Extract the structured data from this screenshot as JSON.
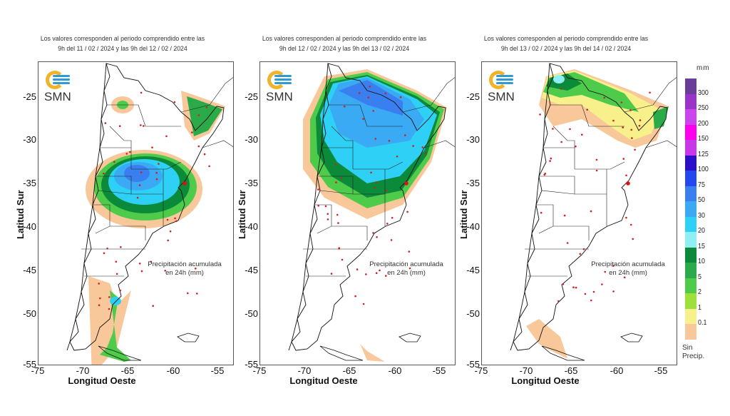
{
  "panels": [
    {
      "subtitle_line1": "Los valores corresponden al periodo comprendido entre las",
      "subtitle_line2": "9h del 11 / 02 / 2024  y las 9h del 12 / 02 / 2024",
      "logo_text": "SMN",
      "annotation_line1": "Precipitación acumulada",
      "annotation_line2": "en 24h (mm)",
      "ylabel": "Latitud Sur",
      "xlabel": "Longitud Oeste",
      "rain_summary": "Heaviest rain (30-75 mm) over central region (Córdoba/Santa Fe/La Pampa); light rain in NE, patchy in southern Patagonia coast"
    },
    {
      "subtitle_line1": "Los valores corresponden al periodo comprendido entre las",
      "subtitle_line2": "9h del 12 / 02 / 2024  y las 9h del 13 / 02 / 2024",
      "logo_text": "SMN",
      "annotation_line1": "Precipitación acumulada",
      "annotation_line2": "en 24h (mm)",
      "ylabel": "Latitud Sur",
      "xlabel": "Longitud Oeste",
      "rain_summary": "Widespread 20-75 mm over northern and central Argentina; no rain in Patagonia except Tierra del Fuego fringe"
    },
    {
      "subtitle_line1": "Los valores corresponden al periodo comprendido entre las",
      "subtitle_line2": "9h del 13 / 02 / 2024  y las 9h del 14 / 02 / 2024",
      "logo_text": "SMN",
      "annotation_line1": "Precipitación acumulada",
      "annotation_line2": "en 24h (mm)",
      "ylabel": "Latitud Sur",
      "xlabel": "Longitud Oeste",
      "rain_summary": "Rain (1-20 mm) restricted to the far north and northeast; dry elsewhere"
    }
  ],
  "axes": {
    "y_ticks": [
      "-25",
      "-30",
      "-35",
      "-40",
      "-45",
      "-50",
      "-55"
    ],
    "x_ticks": [
      "-75",
      "-70",
      "-65",
      "-60",
      "-55"
    ]
  },
  "legend": {
    "unit": "mm",
    "no_precip_label": "Sin",
    "no_precip_label2": "Precip.",
    "classes": [
      {
        "label": "300",
        "color": "#6a3d9a"
      },
      {
        "label": "250",
        "color": "#9a33c8"
      },
      {
        "label": "200",
        "color": "#cc44ee"
      },
      {
        "label": "150",
        "color": "#ff00ee"
      },
      {
        "label": "125",
        "color": "#c838e8"
      },
      {
        "label": "100",
        "color": "#2a10c8"
      },
      {
        "label": "75",
        "color": "#2448f0"
      },
      {
        "label": "50",
        "color": "#3a7ff0"
      },
      {
        "label": "30",
        "color": "#3aaaf5"
      },
      {
        "label": "20",
        "color": "#2fd0f5"
      },
      {
        "label": "15",
        "color": "#8ef0f5"
      },
      {
        "label": "10",
        "color": "#0b8a3a"
      },
      {
        "label": "5",
        "color": "#2aaa48"
      },
      {
        "label": "2",
        "color": "#4ecb4a"
      },
      {
        "label": "1",
        "color": "#9ee03a"
      },
      {
        "label": "0.1",
        "color": "#f8f08a"
      },
      {
        "label": "",
        "color": "#f8c89a"
      }
    ]
  }
}
